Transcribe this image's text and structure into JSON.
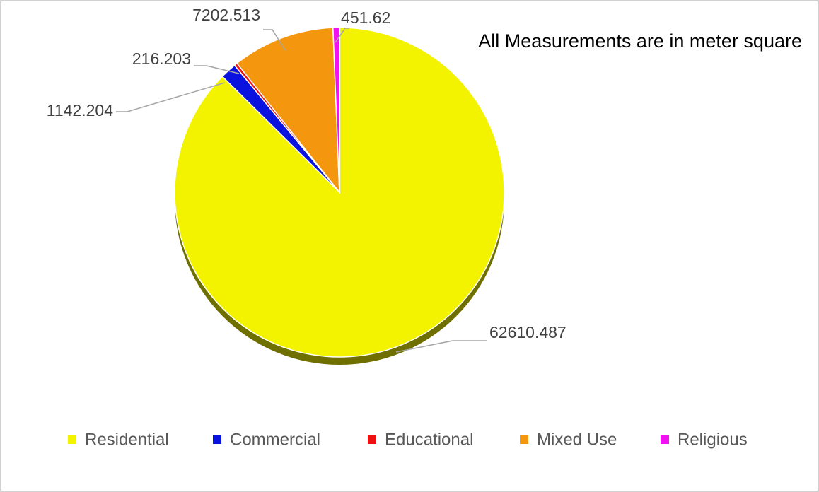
{
  "chart_data": {
    "type": "pie",
    "annotation": "All Measurements are in meter square",
    "categories": [
      "Residential",
      "Commercial",
      "Educational",
      "Mixed Use",
      "Religious"
    ],
    "values": [
      62610.487,
      1142.204,
      216.203,
      7202.513,
      451.62
    ],
    "colors": [
      "#f3f300",
      "#0a12e0",
      "#ee1111",
      "#f5960f",
      "#f012f0"
    ],
    "legend": "bottom"
  }
}
